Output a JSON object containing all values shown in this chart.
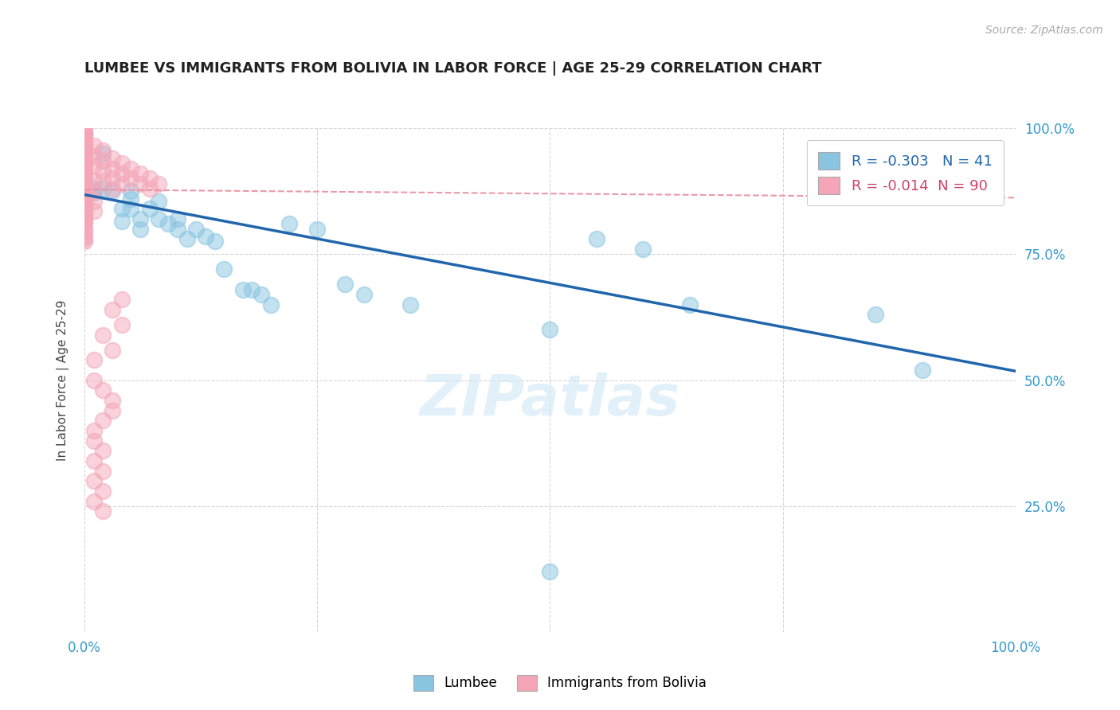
{
  "title": "LUMBEE VS IMMIGRANTS FROM BOLIVIA IN LABOR FORCE | AGE 25-29 CORRELATION CHART",
  "source_text": "Source: ZipAtlas.com",
  "ylabel": "In Labor Force | Age 25-29",
  "xlim": [
    0.0,
    1.0
  ],
  "ylim": [
    0.0,
    1.0
  ],
  "x_ticks": [
    0.0,
    0.25,
    0.5,
    0.75,
    1.0
  ],
  "y_ticks": [
    0.25,
    0.5,
    0.75,
    1.0
  ],
  "background_color": "#ffffff",
  "grid_color": "#cccccc",
  "lumbee_color": "#89c4e1",
  "bolivia_color": "#f4a6b8",
  "lumbee_line_color": "#2166ac",
  "bolivia_line_color": "#e88ea0",
  "lumbee_R": -0.303,
  "lumbee_N": 41,
  "bolivia_R": -0.014,
  "bolivia_N": 90,
  "lumbee_line_x0": 0.0,
  "lumbee_line_y0": 0.868,
  "lumbee_line_x1": 1.0,
  "lumbee_line_y1": 0.518,
  "bolivia_line_x0": 0.0,
  "bolivia_line_y0": 0.878,
  "bolivia_line_x1": 1.0,
  "bolivia_line_y1": 0.862,
  "lumbee_points": [
    [
      0.0,
      0.868
    ],
    [
      0.0,
      0.84
    ],
    [
      0.01,
      0.88
    ],
    [
      0.01,
      0.872
    ],
    [
      0.02,
      0.95
    ],
    [
      0.02,
      0.88
    ],
    [
      0.03,
      0.875
    ],
    [
      0.04,
      0.84
    ],
    [
      0.04,
      0.815
    ],
    [
      0.05,
      0.875
    ],
    [
      0.05,
      0.86
    ],
    [
      0.05,
      0.84
    ],
    [
      0.06,
      0.82
    ],
    [
      0.06,
      0.8
    ],
    [
      0.07,
      0.84
    ],
    [
      0.08,
      0.855
    ],
    [
      0.08,
      0.82
    ],
    [
      0.09,
      0.81
    ],
    [
      0.1,
      0.82
    ],
    [
      0.1,
      0.8
    ],
    [
      0.11,
      0.78
    ],
    [
      0.12,
      0.8
    ],
    [
      0.13,
      0.785
    ],
    [
      0.14,
      0.775
    ],
    [
      0.15,
      0.72
    ],
    [
      0.17,
      0.68
    ],
    [
      0.18,
      0.68
    ],
    [
      0.19,
      0.67
    ],
    [
      0.2,
      0.65
    ],
    [
      0.22,
      0.81
    ],
    [
      0.25,
      0.8
    ],
    [
      0.28,
      0.69
    ],
    [
      0.3,
      0.67
    ],
    [
      0.35,
      0.65
    ],
    [
      0.5,
      0.6
    ],
    [
      0.55,
      0.78
    ],
    [
      0.6,
      0.76
    ],
    [
      0.65,
      0.65
    ],
    [
      0.85,
      0.63
    ],
    [
      0.9,
      0.52
    ],
    [
      0.5,
      0.12
    ]
  ],
  "bolivia_points": [
    [
      0.0,
      1.0
    ],
    [
      0.0,
      0.995
    ],
    [
      0.0,
      0.99
    ],
    [
      0.0,
      0.988
    ],
    [
      0.0,
      0.985
    ],
    [
      0.0,
      0.98
    ],
    [
      0.0,
      0.975
    ],
    [
      0.0,
      0.97
    ],
    [
      0.0,
      0.965
    ],
    [
      0.0,
      0.96
    ],
    [
      0.0,
      0.955
    ],
    [
      0.0,
      0.95
    ],
    [
      0.0,
      0.945
    ],
    [
      0.0,
      0.94
    ],
    [
      0.0,
      0.935
    ],
    [
      0.0,
      0.93
    ],
    [
      0.0,
      0.925
    ],
    [
      0.0,
      0.92
    ],
    [
      0.0,
      0.915
    ],
    [
      0.0,
      0.91
    ],
    [
      0.0,
      0.905
    ],
    [
      0.0,
      0.9
    ],
    [
      0.0,
      0.895
    ],
    [
      0.0,
      0.89
    ],
    [
      0.0,
      0.885
    ],
    [
      0.0,
      0.88
    ],
    [
      0.0,
      0.875
    ],
    [
      0.0,
      0.87
    ],
    [
      0.0,
      0.865
    ],
    [
      0.0,
      0.86
    ],
    [
      0.0,
      0.855
    ],
    [
      0.0,
      0.85
    ],
    [
      0.0,
      0.845
    ],
    [
      0.0,
      0.84
    ],
    [
      0.0,
      0.835
    ],
    [
      0.0,
      0.83
    ],
    [
      0.0,
      0.825
    ],
    [
      0.0,
      0.82
    ],
    [
      0.0,
      0.815
    ],
    [
      0.0,
      0.81
    ],
    [
      0.0,
      0.8
    ],
    [
      0.0,
      0.795
    ],
    [
      0.0,
      0.785
    ],
    [
      0.0,
      0.78
    ],
    [
      0.0,
      0.775
    ],
    [
      0.01,
      0.965
    ],
    [
      0.01,
      0.945
    ],
    [
      0.01,
      0.925
    ],
    [
      0.01,
      0.895
    ],
    [
      0.01,
      0.875
    ],
    [
      0.01,
      0.855
    ],
    [
      0.01,
      0.835
    ],
    [
      0.02,
      0.955
    ],
    [
      0.02,
      0.935
    ],
    [
      0.02,
      0.915
    ],
    [
      0.02,
      0.895
    ],
    [
      0.03,
      0.94
    ],
    [
      0.03,
      0.92
    ],
    [
      0.03,
      0.9
    ],
    [
      0.03,
      0.88
    ],
    [
      0.04,
      0.93
    ],
    [
      0.04,
      0.91
    ],
    [
      0.04,
      0.89
    ],
    [
      0.05,
      0.92
    ],
    [
      0.05,
      0.9
    ],
    [
      0.06,
      0.91
    ],
    [
      0.06,
      0.89
    ],
    [
      0.07,
      0.9
    ],
    [
      0.07,
      0.88
    ],
    [
      0.08,
      0.89
    ],
    [
      0.04,
      0.66
    ],
    [
      0.03,
      0.64
    ],
    [
      0.04,
      0.61
    ],
    [
      0.02,
      0.59
    ],
    [
      0.03,
      0.56
    ],
    [
      0.01,
      0.54
    ],
    [
      0.01,
      0.5
    ],
    [
      0.02,
      0.48
    ],
    [
      0.03,
      0.46
    ],
    [
      0.03,
      0.44
    ],
    [
      0.02,
      0.42
    ],
    [
      0.01,
      0.4
    ],
    [
      0.01,
      0.38
    ],
    [
      0.02,
      0.36
    ],
    [
      0.01,
      0.34
    ],
    [
      0.02,
      0.32
    ],
    [
      0.01,
      0.3
    ],
    [
      0.02,
      0.28
    ],
    [
      0.01,
      0.26
    ],
    [
      0.02,
      0.24
    ]
  ]
}
